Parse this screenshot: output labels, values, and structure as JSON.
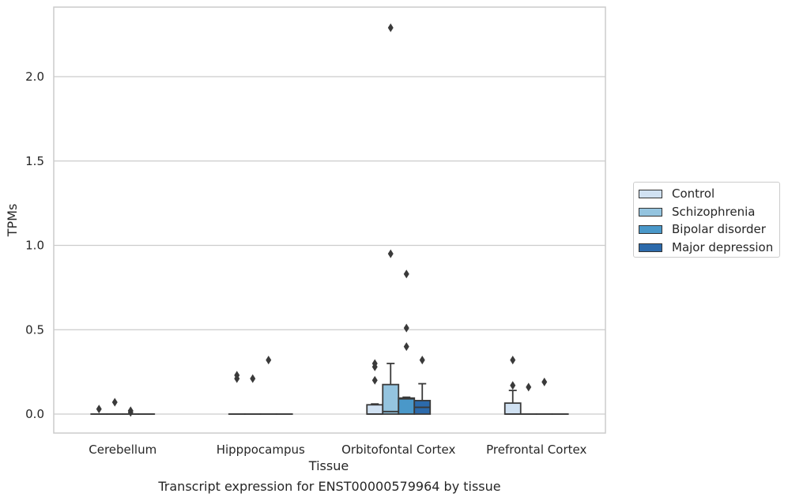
{
  "chart_data": {
    "type": "box",
    "title": "",
    "caption": "Transcript expression for ENST00000579964 by tissue",
    "xlabel": "Tissue",
    "ylabel": "TPMs",
    "ylim": [
      -0.11,
      2.42
    ],
    "yticks": [
      0.0,
      0.5,
      1.0,
      1.5,
      2.0
    ],
    "ytick_labels": [
      "0.0",
      "0.5",
      "1.0",
      "1.5",
      "2.0"
    ],
    "grid": true,
    "legend_position": "right",
    "categories": [
      "Cerebellum",
      "Hipppocampus",
      "Orbitofontal Cortex",
      "Prefrontal Cortex"
    ],
    "series": [
      {
        "name": "Control",
        "color": "#d0e1f2",
        "boxes": [
          {
            "q1": 0.0,
            "median": 0.0,
            "q3": 0.0,
            "whisker_low": 0.0,
            "whisker_high": 0.0,
            "outliers": [
              0.03
            ]
          },
          {
            "q1": 0.0,
            "median": 0.0,
            "q3": 0.0,
            "whisker_low": 0.0,
            "whisker_high": 0.0,
            "outliers": [
              0.21,
              0.23
            ]
          },
          {
            "q1": 0.0,
            "median": 0.0,
            "q3": 0.055,
            "whisker_low": 0.0,
            "whisker_high": 0.06,
            "outliers": [
              0.2,
              0.28,
              0.3
            ]
          },
          {
            "q1": 0.0,
            "median": 0.0,
            "q3": 0.065,
            "whisker_low": 0.0,
            "whisker_high": 0.14,
            "outliers": [
              0.17,
              0.32
            ]
          }
        ]
      },
      {
        "name": "Schizophrenia",
        "color": "#94c4df",
        "boxes": [
          {
            "q1": 0.0,
            "median": 0.0,
            "q3": 0.0,
            "whisker_low": 0.0,
            "whisker_high": 0.0,
            "outliers": [
              0.07
            ]
          },
          {
            "q1": 0.0,
            "median": 0.0,
            "q3": 0.0,
            "whisker_low": 0.0,
            "whisker_high": 0.0,
            "outliers": [
              0.21
            ]
          },
          {
            "q1": 0.0,
            "median": 0.015,
            "q3": 0.175,
            "whisker_low": 0.0,
            "whisker_high": 0.3,
            "outliers": [
              0.95,
              2.29
            ]
          },
          {
            "q1": 0.0,
            "median": 0.0,
            "q3": 0.0,
            "whisker_low": 0.0,
            "whisker_high": 0.0,
            "outliers": [
              0.16
            ]
          }
        ]
      },
      {
        "name": "Bipolar disorder",
        "color": "#4a98c9",
        "boxes": [
          {
            "q1": 0.0,
            "median": 0.0,
            "q3": 0.0,
            "whisker_low": 0.0,
            "whisker_high": 0.0,
            "outliers": [
              0.01,
              0.02
            ]
          },
          {
            "q1": 0.0,
            "median": 0.0,
            "q3": 0.0,
            "whisker_low": 0.0,
            "whisker_high": 0.0,
            "outliers": [
              0.32
            ]
          },
          {
            "q1": 0.0,
            "median": 0.09,
            "q3": 0.095,
            "whisker_low": 0.0,
            "whisker_high": 0.1,
            "outliers": [
              0.4,
              0.51,
              0.83
            ]
          },
          {
            "q1": 0.0,
            "median": 0.0,
            "q3": 0.0,
            "whisker_low": 0.0,
            "whisker_high": 0.0,
            "outliers": [
              0.19
            ]
          }
        ]
      },
      {
        "name": "Major depression",
        "color": "#2c6aab",
        "boxes": [
          {
            "q1": 0.0,
            "median": 0.0,
            "q3": 0.0,
            "whisker_low": 0.0,
            "whisker_high": 0.0,
            "outliers": []
          },
          {
            "q1": 0.0,
            "median": 0.0,
            "q3": 0.0,
            "whisker_low": 0.0,
            "whisker_high": 0.0,
            "outliers": []
          },
          {
            "q1": 0.0,
            "median": 0.04,
            "q3": 0.08,
            "whisker_low": 0.0,
            "whisker_high": 0.18,
            "outliers": [
              0.32
            ]
          },
          {
            "q1": 0.0,
            "median": 0.0,
            "q3": 0.0,
            "whisker_low": 0.0,
            "whisker_high": 0.0,
            "outliers": []
          }
        ]
      }
    ]
  }
}
